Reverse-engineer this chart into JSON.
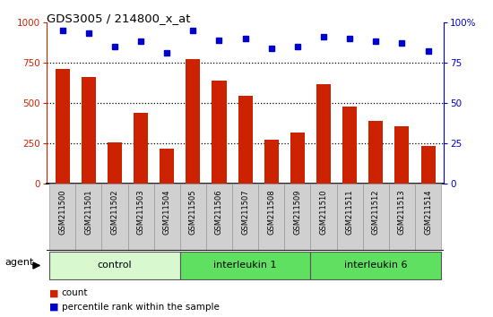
{
  "title": "GDS3005 / 214800_x_at",
  "samples": [
    "GSM211500",
    "GSM211501",
    "GSM211502",
    "GSM211503",
    "GSM211504",
    "GSM211505",
    "GSM211506",
    "GSM211507",
    "GSM211508",
    "GSM211509",
    "GSM211510",
    "GSM211511",
    "GSM211512",
    "GSM211513",
    "GSM211514"
  ],
  "counts": [
    710,
    660,
    255,
    440,
    220,
    770,
    640,
    545,
    275,
    315,
    615,
    480,
    390,
    355,
    235
  ],
  "percentiles": [
    95,
    93,
    85,
    88,
    81,
    95,
    89,
    90,
    84,
    85,
    91,
    90,
    88,
    87,
    82
  ],
  "bar_color": "#cc2200",
  "dot_color": "#0000cc",
  "left_ylim": [
    0,
    1000
  ],
  "right_ylim": [
    0,
    100
  ],
  "left_yticks": [
    0,
    250,
    500,
    750,
    1000
  ],
  "right_yticks": [
    0,
    25,
    50,
    75,
    100
  ],
  "right_yticklabels": [
    "0",
    "25",
    "50",
    "75",
    "100%"
  ],
  "left_ycolor": "#cc2200",
  "right_ycolor": "#0000cc",
  "tick_label_bg": "#d0d0d0",
  "tick_label_edge": "#999999",
  "group_control_color": "#d8f8d0",
  "group_il1_color": "#60e060",
  "group_il6_color": "#60e060",
  "groups": [
    {
      "label": "control",
      "start": 0,
      "end": 4,
      "color": "#d8f8d0"
    },
    {
      "label": "interleukin 1",
      "start": 5,
      "end": 9,
      "color": "#60e060"
    },
    {
      "label": "interleukin 6",
      "start": 10,
      "end": 14,
      "color": "#60e060"
    }
  ],
  "agent_label": "agent",
  "legend_count_label": "count",
  "legend_pct_label": "percentile rank within the sample"
}
